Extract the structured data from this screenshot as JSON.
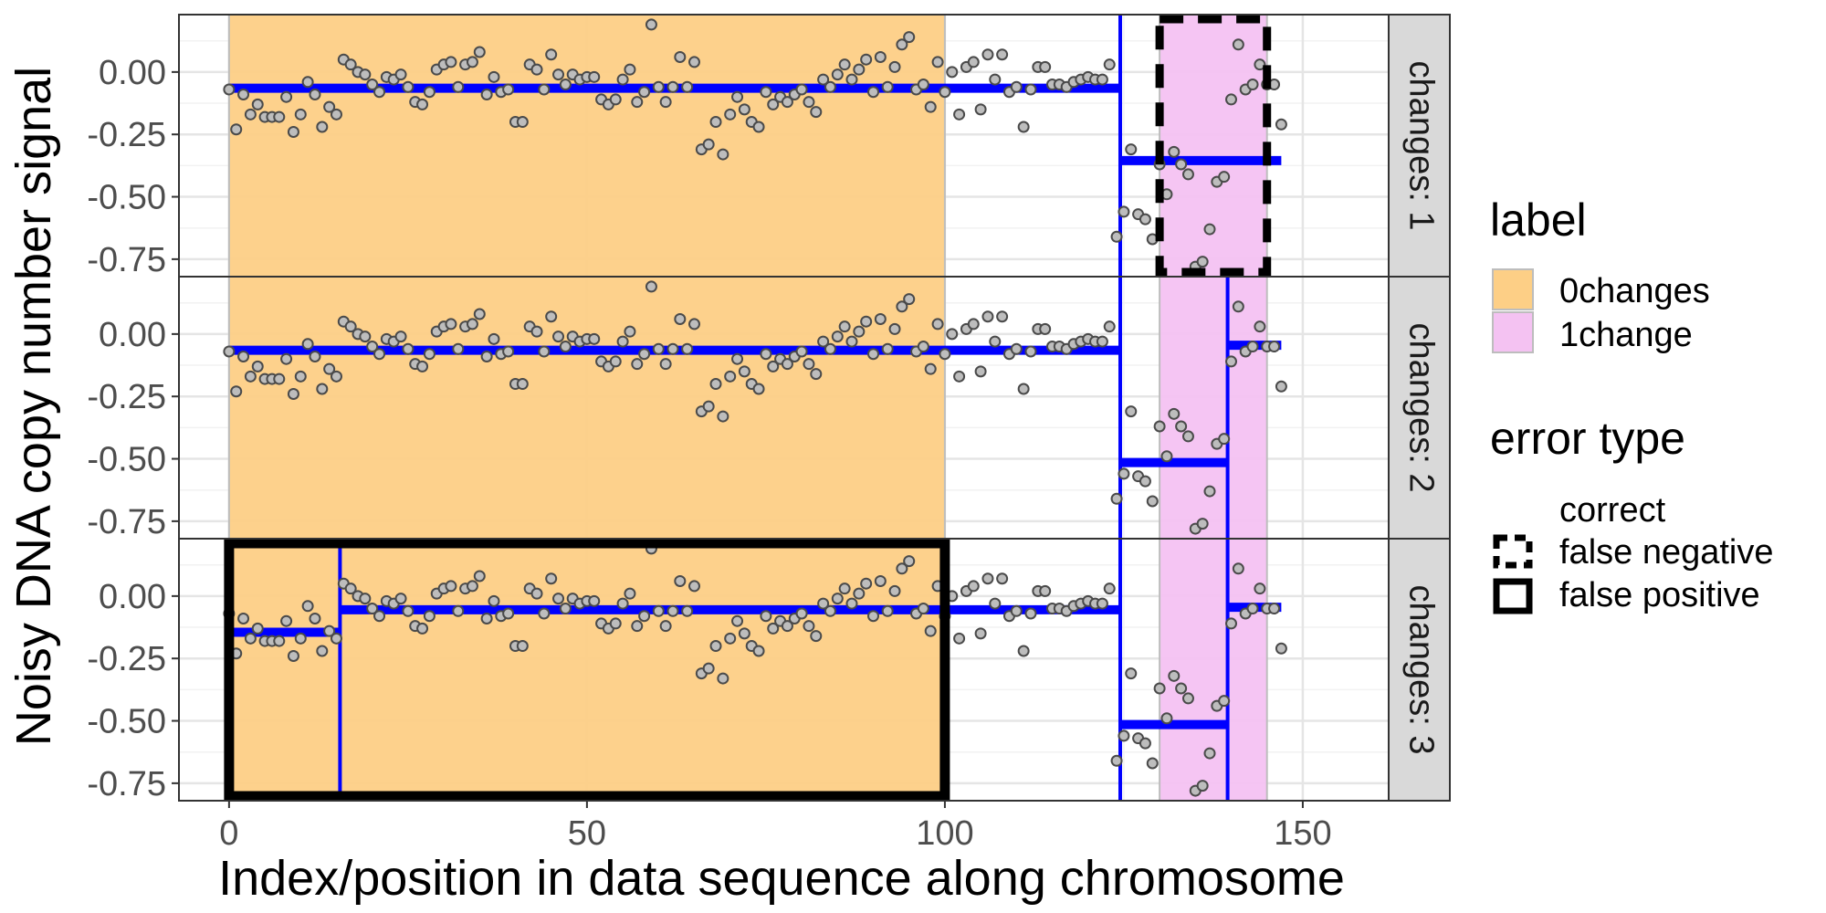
{
  "chart_data": {
    "type": "scatter",
    "xlabel": "Index/position in data sequence along chromosome",
    "ylabel": "Noisy DNA copy number signal",
    "xlim": [
      -7,
      162
    ],
    "ylim": [
      -0.82,
      0.23
    ],
    "x_ticks": [
      0,
      50,
      100,
      150
    ],
    "x_tick_labels": [
      "0",
      "50",
      "100",
      "150"
    ],
    "y_ticks": [
      0.0,
      -0.25,
      -0.5,
      -0.75
    ],
    "y_tick_labels": [
      "0.00",
      "-0.25",
      "-0.50",
      "-0.75"
    ],
    "grid": true,
    "facet_variable": "changes",
    "facets": [
      {
        "strip": "changes: 1",
        "segments": [
          {
            "x_start": 0,
            "x_end": 124.5,
            "mean": -0.065
          },
          {
            "x_start": 124.5,
            "x_end": 147,
            "mean": -0.355
          }
        ],
        "changepoints": [
          124.5
        ],
        "errors": [
          {
            "type": "false negative",
            "x_start": 130,
            "x_end": 145
          }
        ]
      },
      {
        "strip": "changes: 2",
        "segments": [
          {
            "x_start": 0,
            "x_end": 124.5,
            "mean": -0.065
          },
          {
            "x_start": 124.5,
            "x_end": 139.5,
            "mean": -0.515
          },
          {
            "x_start": 139.5,
            "x_end": 147,
            "mean": -0.045
          }
        ],
        "changepoints": [
          124.5,
          139.5
        ],
        "errors": []
      },
      {
        "strip": "changes: 3",
        "segments": [
          {
            "x_start": 0,
            "x_end": 15.5,
            "mean": -0.145
          },
          {
            "x_start": 15.5,
            "x_end": 124.5,
            "mean": -0.055
          },
          {
            "x_start": 124.5,
            "x_end": 139.5,
            "mean": -0.515
          },
          {
            "x_start": 139.5,
            "x_end": 147,
            "mean": -0.045
          }
        ],
        "changepoints": [
          15.5,
          124.5,
          139.5
        ],
        "errors": [
          {
            "type": "false positive",
            "x_start": 0,
            "x_end": 100
          }
        ]
      }
    ],
    "label_regions": [
      {
        "label": "0changes",
        "x_start": 0,
        "x_end": 100,
        "color": "#fdcf86"
      },
      {
        "label": "1change",
        "x_start": 130,
        "x_end": 145,
        "color": "#f4c2f2"
      }
    ],
    "points": {
      "x": [
        0,
        1,
        2,
        3,
        4,
        5,
        6,
        7,
        8,
        9,
        10,
        11,
        12,
        13,
        14,
        15,
        16,
        17,
        18,
        19,
        20,
        21,
        22,
        23,
        24,
        25,
        26,
        27,
        28,
        29,
        30,
        31,
        32,
        33,
        34,
        35,
        36,
        37,
        38,
        39,
        40,
        41,
        42,
        43,
        44,
        45,
        46,
        47,
        48,
        49,
        50,
        51,
        52,
        53,
        54,
        55,
        56,
        57,
        58,
        59,
        60,
        61,
        62,
        63,
        64,
        65,
        66,
        67,
        68,
        69,
        70,
        71,
        72,
        73,
        74,
        75,
        76,
        77,
        78,
        79,
        80,
        81,
        82,
        83,
        84,
        85,
        86,
        87,
        88,
        89,
        90,
        91,
        92,
        93,
        94,
        95,
        96,
        97,
        98,
        99,
        100,
        101,
        102,
        103,
        104,
        105,
        106,
        107,
        108,
        109,
        110,
        111,
        112,
        113,
        114,
        115,
        116,
        117,
        118,
        119,
        120,
        121,
        122,
        123,
        124,
        125,
        126,
        127,
        128,
        129,
        130,
        131,
        132,
        133,
        134,
        135,
        136,
        137,
        138,
        139,
        140,
        141,
        142,
        143,
        144,
        145,
        146,
        147
      ],
      "y": [
        -0.07,
        -0.23,
        -0.09,
        -0.17,
        -0.13,
        -0.18,
        -0.18,
        -0.18,
        -0.1,
        -0.24,
        -0.17,
        -0.04,
        -0.09,
        -0.22,
        -0.14,
        -0.17,
        0.05,
        0.03,
        0.0,
        -0.01,
        -0.05,
        -0.08,
        -0.02,
        -0.03,
        -0.01,
        -0.06,
        -0.12,
        -0.13,
        -0.08,
        0.01,
        0.03,
        0.04,
        -0.06,
        0.03,
        0.04,
        0.08,
        -0.09,
        -0.02,
        -0.08,
        -0.07,
        -0.2,
        -0.2,
        0.03,
        0.01,
        -0.07,
        0.07,
        -0.01,
        -0.05,
        -0.01,
        -0.03,
        -0.02,
        -0.02,
        -0.11,
        -0.13,
        -0.11,
        -0.03,
        0.01,
        -0.12,
        -0.08,
        0.19,
        -0.06,
        -0.12,
        -0.06,
        0.06,
        -0.06,
        0.04,
        -0.31,
        -0.29,
        -0.2,
        -0.33,
        -0.17,
        -0.1,
        -0.15,
        -0.2,
        -0.22,
        -0.08,
        -0.13,
        -0.1,
        -0.12,
        -0.09,
        -0.07,
        -0.12,
        -0.16,
        -0.03,
        -0.06,
        -0.01,
        0.03,
        -0.03,
        0.01,
        0.05,
        -0.08,
        0.06,
        -0.06,
        0.02,
        0.11,
        0.14,
        -0.07,
        -0.05,
        -0.14,
        0.04,
        -0.08,
        0.0,
        -0.17,
        0.02,
        0.04,
        -0.15,
        0.07,
        -0.03,
        0.07,
        -0.08,
        -0.06,
        -0.22,
        -0.07,
        0.02,
        0.02,
        -0.05,
        -0.05,
        -0.06,
        -0.04,
        -0.03,
        -0.02,
        -0.03,
        -0.03,
        0.03,
        -0.66,
        -0.56,
        -0.31,
        -0.57,
        -0.59,
        -0.67,
        -0.37,
        -0.49,
        -0.32,
        -0.37,
        -0.41,
        -0.78,
        -0.76,
        -0.63,
        -0.44,
        -0.42,
        -0.11,
        0.11,
        -0.07,
        -0.05,
        0.03,
        -0.05,
        -0.05,
        -0.21
      ]
    }
  },
  "legend": {
    "label_title": "label",
    "label_items": [
      {
        "name": "0changes",
        "color": "#fdcf86"
      },
      {
        "name": "1change",
        "color": "#f4c2f2"
      }
    ],
    "error_title": "error type",
    "error_items": [
      {
        "name": "correct",
        "style": "none"
      },
      {
        "name": "false negative",
        "style": "dashed"
      },
      {
        "name": "false positive",
        "style": "solid"
      }
    ]
  },
  "colors": {
    "segment_line": "#0000ff",
    "point_fill": "#bdbdbd",
    "point_stroke": "#4a4a4a",
    "strip_fill": "#d9d9d9",
    "error_outline": "#000000"
  }
}
